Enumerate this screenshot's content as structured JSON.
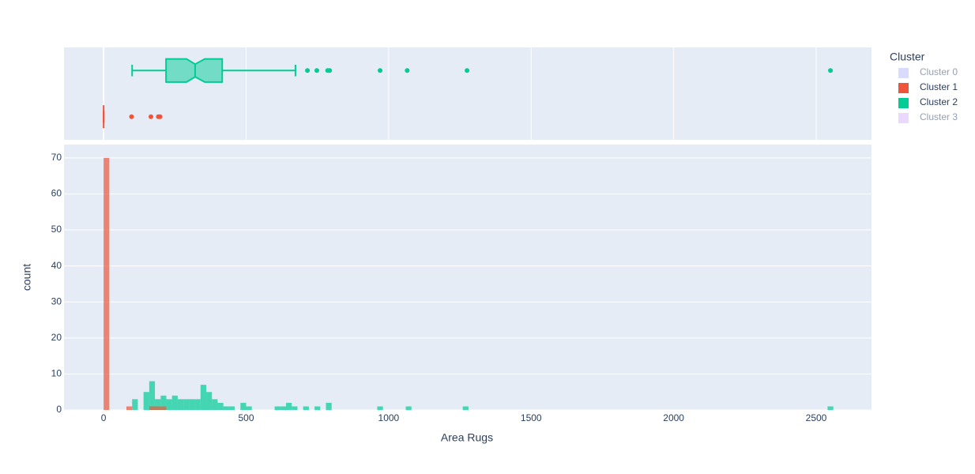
{
  "chart_data": {
    "type": "histogram",
    "x_label": "Area Rugs",
    "y_label": "count",
    "legend_title": "Cluster",
    "xlim": [
      -139,
      2694
    ],
    "xticks": [
      0,
      500,
      1000,
      1500,
      2000,
      2500
    ],
    "ylim": [
      0,
      73.7
    ],
    "yticks": [
      0,
      10,
      20,
      30,
      40,
      50,
      60,
      70
    ],
    "grid": true,
    "bar_opacity": 0.7,
    "bins": [
      0,
      20,
      40,
      60,
      80,
      100,
      120,
      140,
      160,
      180,
      200,
      220,
      240,
      260,
      280,
      300,
      320,
      340,
      360,
      380,
      400,
      420,
      440,
      460,
      480,
      500,
      520,
      540,
      560,
      580,
      600,
      620,
      640,
      660,
      680,
      700,
      720,
      740,
      760,
      780,
      800,
      820,
      840,
      860,
      880,
      900,
      920,
      940,
      960,
      980,
      1000,
      1020,
      1040,
      1060,
      1080,
      1100,
      1120,
      1140,
      1160,
      1180,
      1200,
      1220,
      1240,
      1260,
      1280,
      1300,
      1320,
      1340,
      1360,
      1380,
      1400,
      1420,
      1440,
      1460,
      1480,
      1500,
      1520,
      1540,
      1560,
      1580,
      1600,
      1620,
      1640,
      1660,
      1680,
      1700,
      1720,
      1740,
      1760,
      1780,
      1800,
      1820,
      1840,
      1860,
      1880,
      1900,
      1920,
      1940,
      1960,
      1980,
      2000,
      2020,
      2040,
      2060,
      2080,
      2100,
      2120,
      2140,
      2160,
      2180,
      2200,
      2220,
      2240,
      2260,
      2280,
      2300,
      2320,
      2340,
      2360,
      2380,
      2400,
      2420,
      2440,
      2460,
      2480,
      2500,
      2520,
      2540,
      2560
    ],
    "series": [
      {
        "name": "Cluster 0",
        "color": "#636efa",
        "visible": false
      },
      {
        "name": "Cluster 1",
        "color": "#ef553b",
        "visible": true,
        "counts": [
          70,
          0,
          0,
          0,
          1,
          0,
          0,
          0,
          1,
          1,
          1,
          0,
          0,
          0,
          0,
          0,
          0,
          0,
          0,
          0,
          0,
          0,
          0,
          0,
          0,
          0,
          0,
          0,
          0,
          0,
          0,
          0,
          0,
          0,
          0,
          0,
          0,
          0,
          0,
          0,
          0,
          0,
          0,
          0,
          0,
          0,
          0,
          0,
          0,
          0,
          0,
          0,
          0,
          0,
          0,
          0,
          0,
          0,
          0,
          0,
          0,
          0,
          0,
          0,
          0,
          0,
          0,
          0,
          0,
          0,
          0,
          0,
          0,
          0,
          0,
          0,
          0,
          0,
          0,
          0,
          0,
          0,
          0,
          0,
          0,
          0,
          0,
          0,
          0,
          0,
          0,
          0,
          0,
          0,
          0,
          0,
          0,
          0,
          0,
          0,
          0,
          0,
          0,
          0,
          0,
          0,
          0,
          0,
          0,
          0,
          0,
          0,
          0,
          0,
          0,
          0,
          0,
          0,
          0,
          0,
          0,
          0,
          0,
          0,
          0,
          0,
          0,
          0
        ],
        "box": {
          "lowerfence": 0,
          "q1": 0,
          "notch": [
            0,
            0
          ],
          "median": 0,
          "q3": 0,
          "upperfence": 0,
          "outliers": [
            98,
            166,
            192,
            198
          ]
        }
      },
      {
        "name": "Cluster 2",
        "color": "#00cc96",
        "visible": true,
        "counts": [
          0,
          0,
          0,
          0,
          0,
          3,
          0,
          5,
          8,
          3,
          4,
          3,
          4,
          3,
          3,
          3,
          3,
          7,
          5,
          3,
          2,
          1,
          1,
          0,
          2,
          1,
          0,
          0,
          0,
          0,
          1,
          1,
          2,
          1,
          0,
          1,
          0,
          1,
          0,
          2,
          0,
          0,
          0,
          0,
          0,
          0,
          0,
          0,
          1,
          0,
          0,
          0,
          0,
          1,
          0,
          0,
          0,
          0,
          0,
          0,
          0,
          0,
          0,
          1,
          0,
          0,
          0,
          0,
          0,
          0,
          0,
          0,
          0,
          0,
          0,
          0,
          0,
          0,
          0,
          0,
          0,
          0,
          0,
          0,
          0,
          0,
          0,
          0,
          0,
          0,
          0,
          0,
          0,
          0,
          0,
          0,
          0,
          0,
          0,
          0,
          0,
          0,
          0,
          0,
          0,
          0,
          0,
          0,
          0,
          0,
          0,
          0,
          0,
          0,
          0,
          0,
          0,
          0,
          0,
          0,
          0,
          0,
          0,
          0,
          0,
          0,
          0,
          1
        ],
        "box": {
          "lowerfence": 100,
          "q1": 219,
          "notch": [
            291,
            355
          ],
          "median": 321,
          "q3": 416,
          "upperfence": 673,
          "outliers": [
            715,
            748,
            786,
            793,
            970,
            1065,
            1275,
            2550
          ]
        }
      },
      {
        "name": "Cluster 3",
        "color": "#ab63fa",
        "visible": false
      }
    ]
  }
}
